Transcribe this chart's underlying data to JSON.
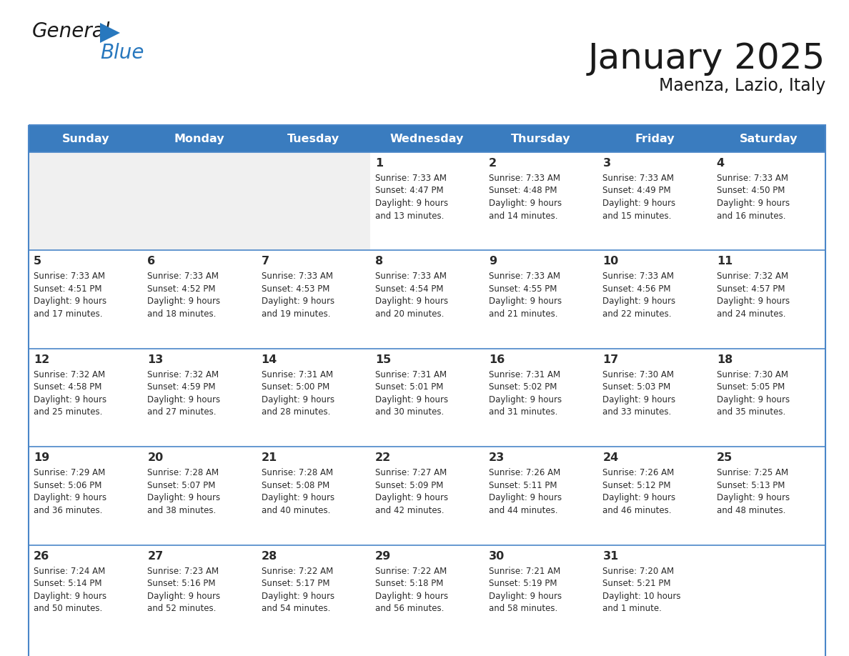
{
  "title": "January 2025",
  "subtitle": "Maenza, Lazio, Italy",
  "days_of_week": [
    "Sunday",
    "Monday",
    "Tuesday",
    "Wednesday",
    "Thursday",
    "Friday",
    "Saturday"
  ],
  "header_bg": "#3a7cbf",
  "header_text_color": "#ffffff",
  "cell_bg_normal": "#ffffff",
  "cell_bg_alt": "#f0f0f0",
  "cell_border_color": "#4a86c8",
  "day_number_color": "#2a2a2a",
  "text_color": "#2a2a2a",
  "title_color": "#1a1a1a",
  "logo_general_color": "#1a1a1a",
  "logo_blue_color": "#2878be",
  "weeks": [
    [
      {
        "day": "",
        "sunrise": "",
        "sunset": "",
        "daylight": ""
      },
      {
        "day": "",
        "sunrise": "",
        "sunset": "",
        "daylight": ""
      },
      {
        "day": "",
        "sunrise": "",
        "sunset": "",
        "daylight": ""
      },
      {
        "day": "1",
        "sunrise": "7:33 AM",
        "sunset": "4:47 PM",
        "daylight": "9 hours\nand 13 minutes."
      },
      {
        "day": "2",
        "sunrise": "7:33 AM",
        "sunset": "4:48 PM",
        "daylight": "9 hours\nand 14 minutes."
      },
      {
        "day": "3",
        "sunrise": "7:33 AM",
        "sunset": "4:49 PM",
        "daylight": "9 hours\nand 15 minutes."
      },
      {
        "day": "4",
        "sunrise": "7:33 AM",
        "sunset": "4:50 PM",
        "daylight": "9 hours\nand 16 minutes."
      }
    ],
    [
      {
        "day": "5",
        "sunrise": "7:33 AM",
        "sunset": "4:51 PM",
        "daylight": "9 hours\nand 17 minutes."
      },
      {
        "day": "6",
        "sunrise": "7:33 AM",
        "sunset": "4:52 PM",
        "daylight": "9 hours\nand 18 minutes."
      },
      {
        "day": "7",
        "sunrise": "7:33 AM",
        "sunset": "4:53 PM",
        "daylight": "9 hours\nand 19 minutes."
      },
      {
        "day": "8",
        "sunrise": "7:33 AM",
        "sunset": "4:54 PM",
        "daylight": "9 hours\nand 20 minutes."
      },
      {
        "day": "9",
        "sunrise": "7:33 AM",
        "sunset": "4:55 PM",
        "daylight": "9 hours\nand 21 minutes."
      },
      {
        "day": "10",
        "sunrise": "7:33 AM",
        "sunset": "4:56 PM",
        "daylight": "9 hours\nand 22 minutes."
      },
      {
        "day": "11",
        "sunrise": "7:32 AM",
        "sunset": "4:57 PM",
        "daylight": "9 hours\nand 24 minutes."
      }
    ],
    [
      {
        "day": "12",
        "sunrise": "7:32 AM",
        "sunset": "4:58 PM",
        "daylight": "9 hours\nand 25 minutes."
      },
      {
        "day": "13",
        "sunrise": "7:32 AM",
        "sunset": "4:59 PM",
        "daylight": "9 hours\nand 27 minutes."
      },
      {
        "day": "14",
        "sunrise": "7:31 AM",
        "sunset": "5:00 PM",
        "daylight": "9 hours\nand 28 minutes."
      },
      {
        "day": "15",
        "sunrise": "7:31 AM",
        "sunset": "5:01 PM",
        "daylight": "9 hours\nand 30 minutes."
      },
      {
        "day": "16",
        "sunrise": "7:31 AM",
        "sunset": "5:02 PM",
        "daylight": "9 hours\nand 31 minutes."
      },
      {
        "day": "17",
        "sunrise": "7:30 AM",
        "sunset": "5:03 PM",
        "daylight": "9 hours\nand 33 minutes."
      },
      {
        "day": "18",
        "sunrise": "7:30 AM",
        "sunset": "5:05 PM",
        "daylight": "9 hours\nand 35 minutes."
      }
    ],
    [
      {
        "day": "19",
        "sunrise": "7:29 AM",
        "sunset": "5:06 PM",
        "daylight": "9 hours\nand 36 minutes."
      },
      {
        "day": "20",
        "sunrise": "7:28 AM",
        "sunset": "5:07 PM",
        "daylight": "9 hours\nand 38 minutes."
      },
      {
        "day": "21",
        "sunrise": "7:28 AM",
        "sunset": "5:08 PM",
        "daylight": "9 hours\nand 40 minutes."
      },
      {
        "day": "22",
        "sunrise": "7:27 AM",
        "sunset": "5:09 PM",
        "daylight": "9 hours\nand 42 minutes."
      },
      {
        "day": "23",
        "sunrise": "7:26 AM",
        "sunset": "5:11 PM",
        "daylight": "9 hours\nand 44 minutes."
      },
      {
        "day": "24",
        "sunrise": "7:26 AM",
        "sunset": "5:12 PM",
        "daylight": "9 hours\nand 46 minutes."
      },
      {
        "day": "25",
        "sunrise": "7:25 AM",
        "sunset": "5:13 PM",
        "daylight": "9 hours\nand 48 minutes."
      }
    ],
    [
      {
        "day": "26",
        "sunrise": "7:24 AM",
        "sunset": "5:14 PM",
        "daylight": "9 hours\nand 50 minutes."
      },
      {
        "day": "27",
        "sunrise": "7:23 AM",
        "sunset": "5:16 PM",
        "daylight": "9 hours\nand 52 minutes."
      },
      {
        "day": "28",
        "sunrise": "7:22 AM",
        "sunset": "5:17 PM",
        "daylight": "9 hours\nand 54 minutes."
      },
      {
        "day": "29",
        "sunrise": "7:22 AM",
        "sunset": "5:18 PM",
        "daylight": "9 hours\nand 56 minutes."
      },
      {
        "day": "30",
        "sunrise": "7:21 AM",
        "sunset": "5:19 PM",
        "daylight": "9 hours\nand 58 minutes."
      },
      {
        "day": "31",
        "sunrise": "7:20 AM",
        "sunset": "5:21 PM",
        "daylight": "10 hours\nand 1 minute."
      },
      {
        "day": "",
        "sunrise": "",
        "sunset": "",
        "daylight": ""
      }
    ]
  ]
}
